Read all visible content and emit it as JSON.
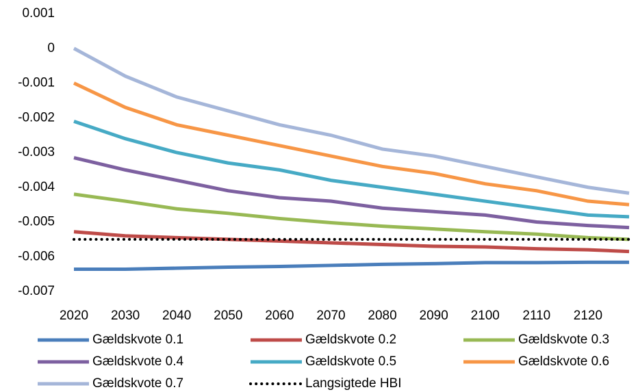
{
  "chart_data": {
    "type": "line",
    "x": [
      2020,
      2030,
      2040,
      2050,
      2060,
      2070,
      2080,
      2090,
      2100,
      2110,
      2120,
      2128
    ],
    "xlim": [
      2020,
      2128
    ],
    "xticks": [
      2020,
      2030,
      2040,
      2050,
      2060,
      2070,
      2080,
      2090,
      2100,
      2110,
      2120
    ],
    "ylim": [
      -0.007,
      0.001
    ],
    "yticks": [
      0.001,
      0,
      -0.001,
      -0.002,
      -0.003,
      -0.004,
      -0.005,
      -0.006,
      -0.007
    ],
    "grid": false,
    "legend": "bottom",
    "series": [
      {
        "name": "Gældskvote 0.1",
        "color": "#4a7ebb",
        "values": [
          -0.00636,
          -0.00636,
          -0.00633,
          -0.0063,
          -0.00628,
          -0.00625,
          -0.00622,
          -0.0062,
          -0.00617,
          -0.00617,
          -0.00616,
          -0.00616
        ]
      },
      {
        "name": "Gældskvote 0.2",
        "color": "#be4b48",
        "values": [
          -0.00528,
          -0.0054,
          -0.00545,
          -0.0055,
          -0.00555,
          -0.0056,
          -0.00565,
          -0.0057,
          -0.00572,
          -0.00577,
          -0.0058,
          -0.00585
        ]
      },
      {
        "name": "Gældskvote 0.3",
        "color": "#98b954",
        "values": [
          -0.0042,
          -0.0044,
          -0.00462,
          -0.00475,
          -0.0049,
          -0.00502,
          -0.00512,
          -0.0052,
          -0.00528,
          -0.00535,
          -0.00545,
          -0.0055
        ]
      },
      {
        "name": "Gældskvote 0.4",
        "color": "#7d60a0",
        "values": [
          -0.00315,
          -0.0035,
          -0.0038,
          -0.0041,
          -0.0043,
          -0.0044,
          -0.0046,
          -0.0047,
          -0.0048,
          -0.005,
          -0.0051,
          -0.00516
        ]
      },
      {
        "name": "Gældskvote 0.5",
        "color": "#46aac5",
        "values": [
          -0.0021,
          -0.0026,
          -0.003,
          -0.0033,
          -0.0035,
          -0.0038,
          -0.004,
          -0.0042,
          -0.0044,
          -0.0046,
          -0.0048,
          -0.00485
        ]
      },
      {
        "name": "Gældskvote 0.6",
        "color": "#f79646",
        "values": [
          -0.001,
          -0.0017,
          -0.0022,
          -0.0025,
          -0.0028,
          -0.0031,
          -0.0034,
          -0.0036,
          -0.0039,
          -0.0041,
          -0.0044,
          -0.0045
        ]
      },
      {
        "name": "Gældskvote 0.7",
        "color": "#a5b6d9",
        "values": [
          0,
          -0.0008,
          -0.0014,
          -0.0018,
          -0.0022,
          -0.0025,
          -0.0029,
          -0.0031,
          -0.0034,
          -0.0037,
          -0.004,
          -0.00417
        ]
      },
      {
        "name": "Langsigtede HBI",
        "color": "#000000",
        "dash": "dotted",
        "values": [
          -0.0055,
          -0.0055,
          -0.0055,
          -0.0055,
          -0.0055,
          -0.0055,
          -0.0055,
          -0.0055,
          -0.0055,
          -0.0055,
          -0.0055,
          -0.0055
        ]
      }
    ]
  }
}
